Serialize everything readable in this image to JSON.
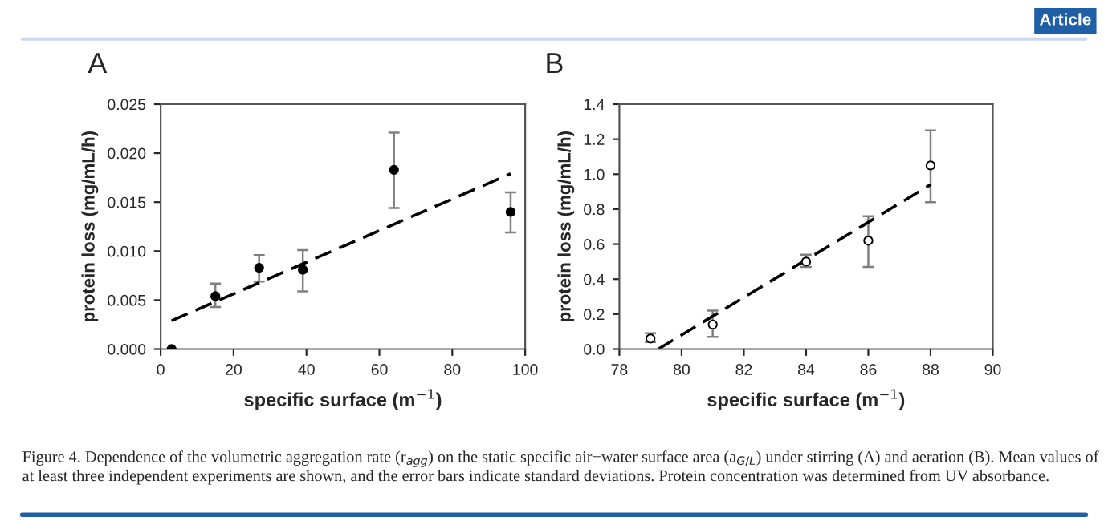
{
  "chart_data": [
    {
      "type": "scatter",
      "title": "A",
      "xlabel": "specific surface (m$^{−1}$)",
      "ylabel": "protein loss (mg/mL/h)",
      "xlim": [
        0,
        100
      ],
      "xticks": [
        0,
        20,
        40,
        60,
        80,
        100
      ],
      "ylim": [
        0,
        0.025
      ],
      "yticks": [
        {
          "value": 0,
          "label": "0.000"
        },
        {
          "value": 0.005,
          "label": "0.005"
        },
        {
          "value": 0.01,
          "label": "0.010"
        },
        {
          "value": 0.015,
          "label": "0.015"
        },
        {
          "value": 0.02,
          "label": "0.020"
        },
        {
          "value": 0.025,
          "label": "0.025"
        }
      ],
      "grid": false,
      "legend": false,
      "annotations": [
        "Article",
        "Figure 4. Dependence of the volumetric aggregation rate (r$_{agg}$) on the static specific air−water surface area (a$_{G/L}$) under stirring (A) and aeration (B). Mean values of at least three independent experiments are shown, and the error bars indicate standard deviations. Protein concentration was determined from UV absorbance."
      ],
      "series": [
        {
          "marker": "circle",
          "color": "#000000",
          "x": [
            3,
            15,
            27,
            39,
            64,
            96
          ],
          "values": [
            0.0,
            0.0054,
            0.0083,
            0.0081,
            0.0183,
            0.014
          ],
          "errors": [
            null,
            [
              0.0043,
              0.0067
            ],
            [
              0.0069,
              0.0096
            ],
            [
              0.0059,
              0.0101
            ],
            [
              0.0144,
              0.0221
            ],
            [
              0.0119,
              0.016
            ]
          ]
        },
        {
          "type": "line",
          "marker": "none",
          "color": "#000000",
          "line_style": "dashed",
          "x": [
            3,
            96
          ],
          "values": [
            0.0029,
            0.0179
          ]
        }
      ]
    },
    {
      "type": "scatter",
      "title": "B",
      "xlabel": "specific surface (m$^{−1}$)",
      "ylabel": "protein loss (mg/mL/h)",
      "xlim": [
        78,
        90
      ],
      "xticks": [
        78,
        80,
        82,
        84,
        86,
        88,
        90
      ],
      "ylim": [
        0,
        1.4
      ],
      "yticks": [
        {
          "value": 0,
          "label": "0.0"
        },
        {
          "value": 0.2,
          "label": "0.2"
        },
        {
          "value": 0.4,
          "label": "0.4"
        },
        {
          "value": 0.6,
          "label": "0.6"
        },
        {
          "value": 0.8,
          "label": "0.8"
        },
        {
          "value": 1.0,
          "label": "1.0"
        },
        {
          "value": 1.2,
          "label": "1.2"
        },
        {
          "value": 1.4,
          "label": "1.4"
        }
      ],
      "grid": false,
      "legend": false,
      "series": [
        {
          "marker": "circle",
          "color": "#ffffff",
          "x": [
            79,
            81,
            84,
            86,
            88
          ],
          "values": [
            0.06,
            0.14,
            0.5,
            0.62,
            1.05
          ],
          "errors": [
            [
              0.04,
              0.09
            ],
            [
              0.07,
              0.22
            ],
            [
              0.47,
              0.54
            ],
            [
              0.47,
              0.76
            ],
            [
              0.84,
              1.25
            ]
          ]
        },
        {
          "type": "line",
          "marker": "none",
          "color": "#000000",
          "line_style": "dashed",
          "x": [
            79.25,
            88
          ],
          "values": [
            0.0,
            0.94
          ]
        }
      ]
    }
  ]
}
